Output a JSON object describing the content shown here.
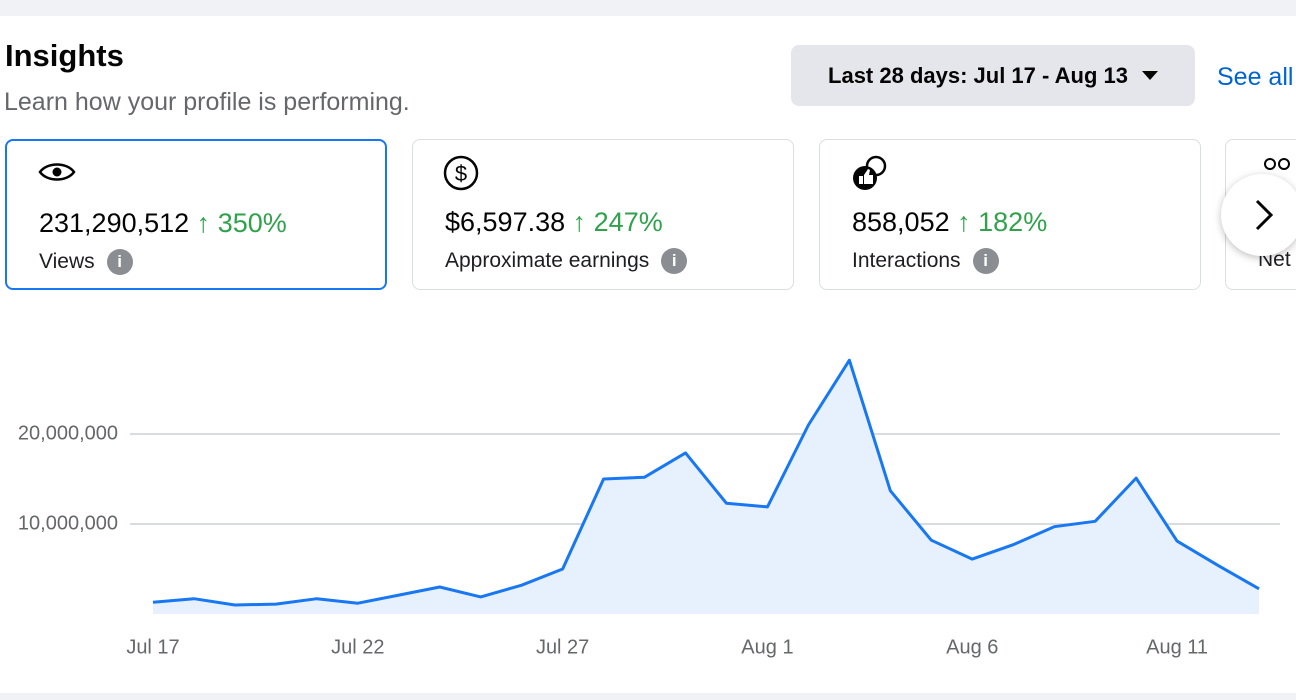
{
  "header": {
    "title": "Insights",
    "subtitle": "Learn how your profile is performing.",
    "date_range": "Last 28 days: Jul 17 - Aug 13",
    "see_all": "See all"
  },
  "cards": [
    {
      "value": "231,290,512",
      "change": "350%",
      "label": "Views"
    },
    {
      "value": "$6,597.38",
      "change": "247%",
      "label": "Approximate earnings"
    },
    {
      "value": "858,052",
      "change": "182%",
      "label": "Interactions"
    },
    {
      "label": "Net"
    }
  ],
  "chart_data": {
    "type": "area",
    "color": "#1877f2",
    "fill": "#e7f0fd",
    "grid": true,
    "categories": [
      "Jul 17",
      null,
      null,
      null,
      null,
      "Jul 22",
      null,
      null,
      null,
      null,
      "Jul 27",
      null,
      null,
      null,
      null,
      "Aug 1",
      null,
      null,
      null,
      null,
      "Aug 6",
      null,
      null,
      null,
      null,
      "Aug 11",
      null,
      null
    ],
    "values": [
      1300000,
      1700000,
      1000000,
      1100000,
      1700000,
      1200000,
      2100000,
      3000000,
      1900000,
      3200000,
      5000000,
      15000000,
      15200000,
      17900000,
      12300000,
      11900000,
      21000000,
      28200000,
      13700000,
      8200000,
      6100000,
      7700000,
      9700000,
      10300000,
      15100000,
      8100000,
      5400000,
      2800000
    ],
    "ylim": [
      0,
      30000000
    ],
    "yticks": [
      {
        "value": 10000000,
        "label": "10,000,000"
      },
      {
        "value": 20000000,
        "label": "20,000,000"
      }
    ]
  }
}
